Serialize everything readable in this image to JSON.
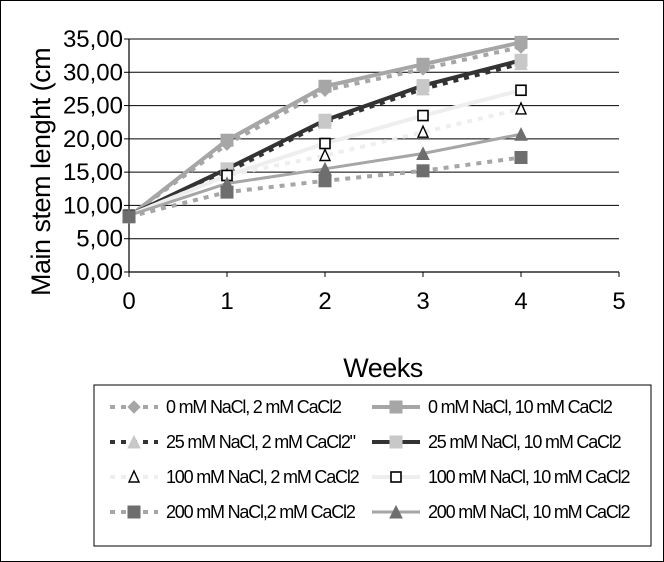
{
  "chart_data": {
    "type": "line",
    "title": "",
    "xlabel": "Weeks",
    "ylabel": "Main stem lenght (cm",
    "xlim": [
      0,
      5
    ],
    "ylim": [
      0,
      35
    ],
    "x_ticks": [
      "0",
      "1",
      "2",
      "3",
      "4",
      "5"
    ],
    "y_ticks": [
      "0,00",
      "5,00",
      "10,00",
      "15,00",
      "20,00",
      "25,00",
      "30,00",
      "35,00"
    ],
    "grid": "horizontal",
    "legend_position": "bottom",
    "x": [
      0,
      1,
      2,
      3,
      4
    ],
    "series": [
      {
        "name": "0 mM NaCl, 2 mM CaCl2",
        "values": [
          8.3,
          19.2,
          27.3,
          30.5,
          33.8
        ],
        "color": "#a6a6a6",
        "dash": "5,6",
        "width": 4,
        "marker": "diamond",
        "marker_fill": "#a6a6a6"
      },
      {
        "name": "0 mM NaCl, 10 mM CaCl2",
        "values": [
          8.3,
          19.8,
          27.9,
          31.2,
          34.5
        ],
        "color": "#a6a6a6",
        "dash": "",
        "width": 4,
        "marker": "square",
        "marker_fill": "#a6a6a6"
      },
      {
        "name": "25 mM NaCl, 2 mM CaCl2\"",
        "values": [
          8.5,
          15.0,
          22.5,
          27.5,
          31.3
        ],
        "color": "#333333",
        "dash": "5,6",
        "width": 4,
        "marker": "triangle",
        "marker_fill": "#c8c8c8"
      },
      {
        "name": "25 mM NaCl, 10 mM CaCl2",
        "values": [
          8.5,
          15.5,
          22.8,
          28.0,
          31.8
        ],
        "color": "#333333",
        "dash": "",
        "width": 4,
        "marker": "square",
        "marker_fill": "#c8c8c8"
      },
      {
        "name": "100 mM NaCl, 2 mM CaCl2",
        "values": [
          8.5,
          14.5,
          17.5,
          21.0,
          24.5
        ],
        "color": "#eeeeee",
        "dash": "5,6",
        "width": 4,
        "marker": "triangle-open",
        "marker_fill": "#ffffff"
      },
      {
        "name": "100 mM NaCl, 10 mM CaCl2",
        "values": [
          8.5,
          14.5,
          19.3,
          23.5,
          27.3
        ],
        "color": "#eeeeee",
        "dash": "",
        "width": 4,
        "marker": "square-open",
        "marker_fill": "#ffffff"
      },
      {
        "name": "200 mM NaCl,2 mM CaCl2",
        "values": [
          8.3,
          12.0,
          13.7,
          15.2,
          17.2
        ],
        "color": "#a6a6a6",
        "dash": "5,6",
        "width": 4,
        "marker": "square",
        "marker_fill": "#6e6e6e"
      },
      {
        "name": "200 mM NaCl, 10 mM CaCl2",
        "values": [
          8.5,
          13.3,
          15.5,
          17.8,
          20.7
        ],
        "color": "#a6a6a6",
        "dash": "",
        "width": 3,
        "marker": "triangle",
        "marker_fill": "#6e6e6e"
      }
    ],
    "legend_labels": [
      "0 mM NaCl, 2 mM CaCl2",
      "0 mM NaCl, 10 mM CaCl2",
      "25 mM NaCl, 2 mM CaCl2\"",
      "25 mM NaCl, 10 mM CaCl2",
      "100 mM NaCl, 2 mM CaCl2",
      "100 mM NaCl, 10 mM CaCl2",
      "200 mM NaCl,2 mM CaCl2",
      "200 mM NaCl, 10 mM CaCl2"
    ]
  }
}
